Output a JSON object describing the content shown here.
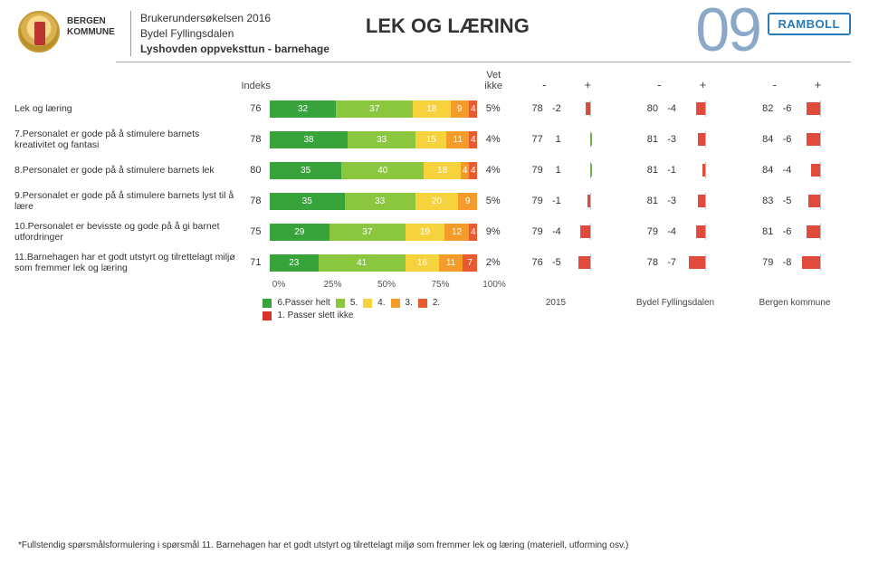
{
  "header": {
    "kommune_line1": "BERGEN",
    "kommune_line2": "KOMMUNE",
    "survey": "Brukerundersøkelsen 2016",
    "bydel": "Bydel Fyllingsdalen",
    "unit": "Lyshovden oppveksttun - barnehage",
    "title": "LEK OG LÆRING",
    "page_no": "09",
    "brand": "RAMBOLL"
  },
  "column_labels": {
    "indeks": "Indeks",
    "vet_ikke": "Vet ikke",
    "minus": "-",
    "plus": "+"
  },
  "segment_colors": [
    "#38a33b",
    "#8bc63f",
    "#f6d33c",
    "#f59b29",
    "#e85b2f",
    "#d73027"
  ],
  "legend_labels": [
    "6.Passer helt",
    "5.",
    "4.",
    "3.",
    "2.",
    "1. Passer slett ikke"
  ],
  "diff_colors": {
    "neg": "#e24a3b",
    "pos": "#6fb24b"
  },
  "axis_ticks": [
    "0%",
    "25%",
    "50%",
    "75%",
    "100%"
  ],
  "comparisons": [
    {
      "label": "2015"
    },
    {
      "label": "Bydel Fyllingsdalen"
    },
    {
      "label": "Bergen kommune"
    }
  ],
  "diff_max_abs": 10,
  "rows": [
    {
      "label": "Lek og læring",
      "indeks": 76,
      "segments": [
        32,
        37,
        18,
        9,
        4,
        0
      ],
      "vet_ikke": "5%",
      "cmp": [
        {
          "val": 78,
          "diff": -2
        },
        {
          "val": 80,
          "diff": -4
        },
        {
          "val": 82,
          "diff": -6
        }
      ]
    },
    {
      "label": "7.Personalet er gode på å stimulere barnets kreativitet og fantasi",
      "indeks": 78,
      "segments": [
        38,
        33,
        15,
        11,
        4,
        0
      ],
      "vet_ikke": "4%",
      "cmp": [
        {
          "val": 77,
          "diff": 1
        },
        {
          "val": 81,
          "diff": -3
        },
        {
          "val": 84,
          "diff": -6
        }
      ]
    },
    {
      "label": "8.Personalet er gode på å stimulere barnets lek",
      "indeks": 80,
      "segments": [
        35,
        40,
        18,
        4,
        4,
        0
      ],
      "vet_ikke": "4%",
      "cmp": [
        {
          "val": 79,
          "diff": 1
        },
        {
          "val": 81,
          "diff": -1
        },
        {
          "val": 84,
          "diff": -4
        }
      ]
    },
    {
      "label": "9.Personalet er gode på å stimulere barnets lyst til å lære",
      "indeks": 78,
      "segments": [
        35,
        33,
        20,
        9,
        0,
        0
      ],
      "vet_ikke": "5%",
      "cmp": [
        {
          "val": 79,
          "diff": -1
        },
        {
          "val": 81,
          "diff": -3
        },
        {
          "val": 83,
          "diff": -5
        }
      ]
    },
    {
      "label": "10.Personalet er bevisste og gode på å gi barnet utfordringer",
      "indeks": 75,
      "segments": [
        29,
        37,
        19,
        12,
        4,
        0
      ],
      "vet_ikke": "9%",
      "cmp": [
        {
          "val": 79,
          "diff": -4
        },
        {
          "val": 79,
          "diff": -4
        },
        {
          "val": 81,
          "diff": -6
        }
      ]
    },
    {
      "label": "11.Barnehagen har et godt utstyrt og tilrettelagt miljø som fremmer lek og læring",
      "indeks": 71,
      "segments": [
        23,
        41,
        16,
        11,
        7,
        0
      ],
      "vet_ikke": "2%",
      "cmp": [
        {
          "val": 76,
          "diff": -5
        },
        {
          "val": 78,
          "diff": -7
        },
        {
          "val": 79,
          "diff": -8
        }
      ]
    }
  ],
  "footnote": "*Fullstendig spørsmålsformulering i spørsmål 11. Barnehagen har et godt utstyrt og tilrettelagt miljø som fremmer lek og læring (materiell, utforming osv.)"
}
